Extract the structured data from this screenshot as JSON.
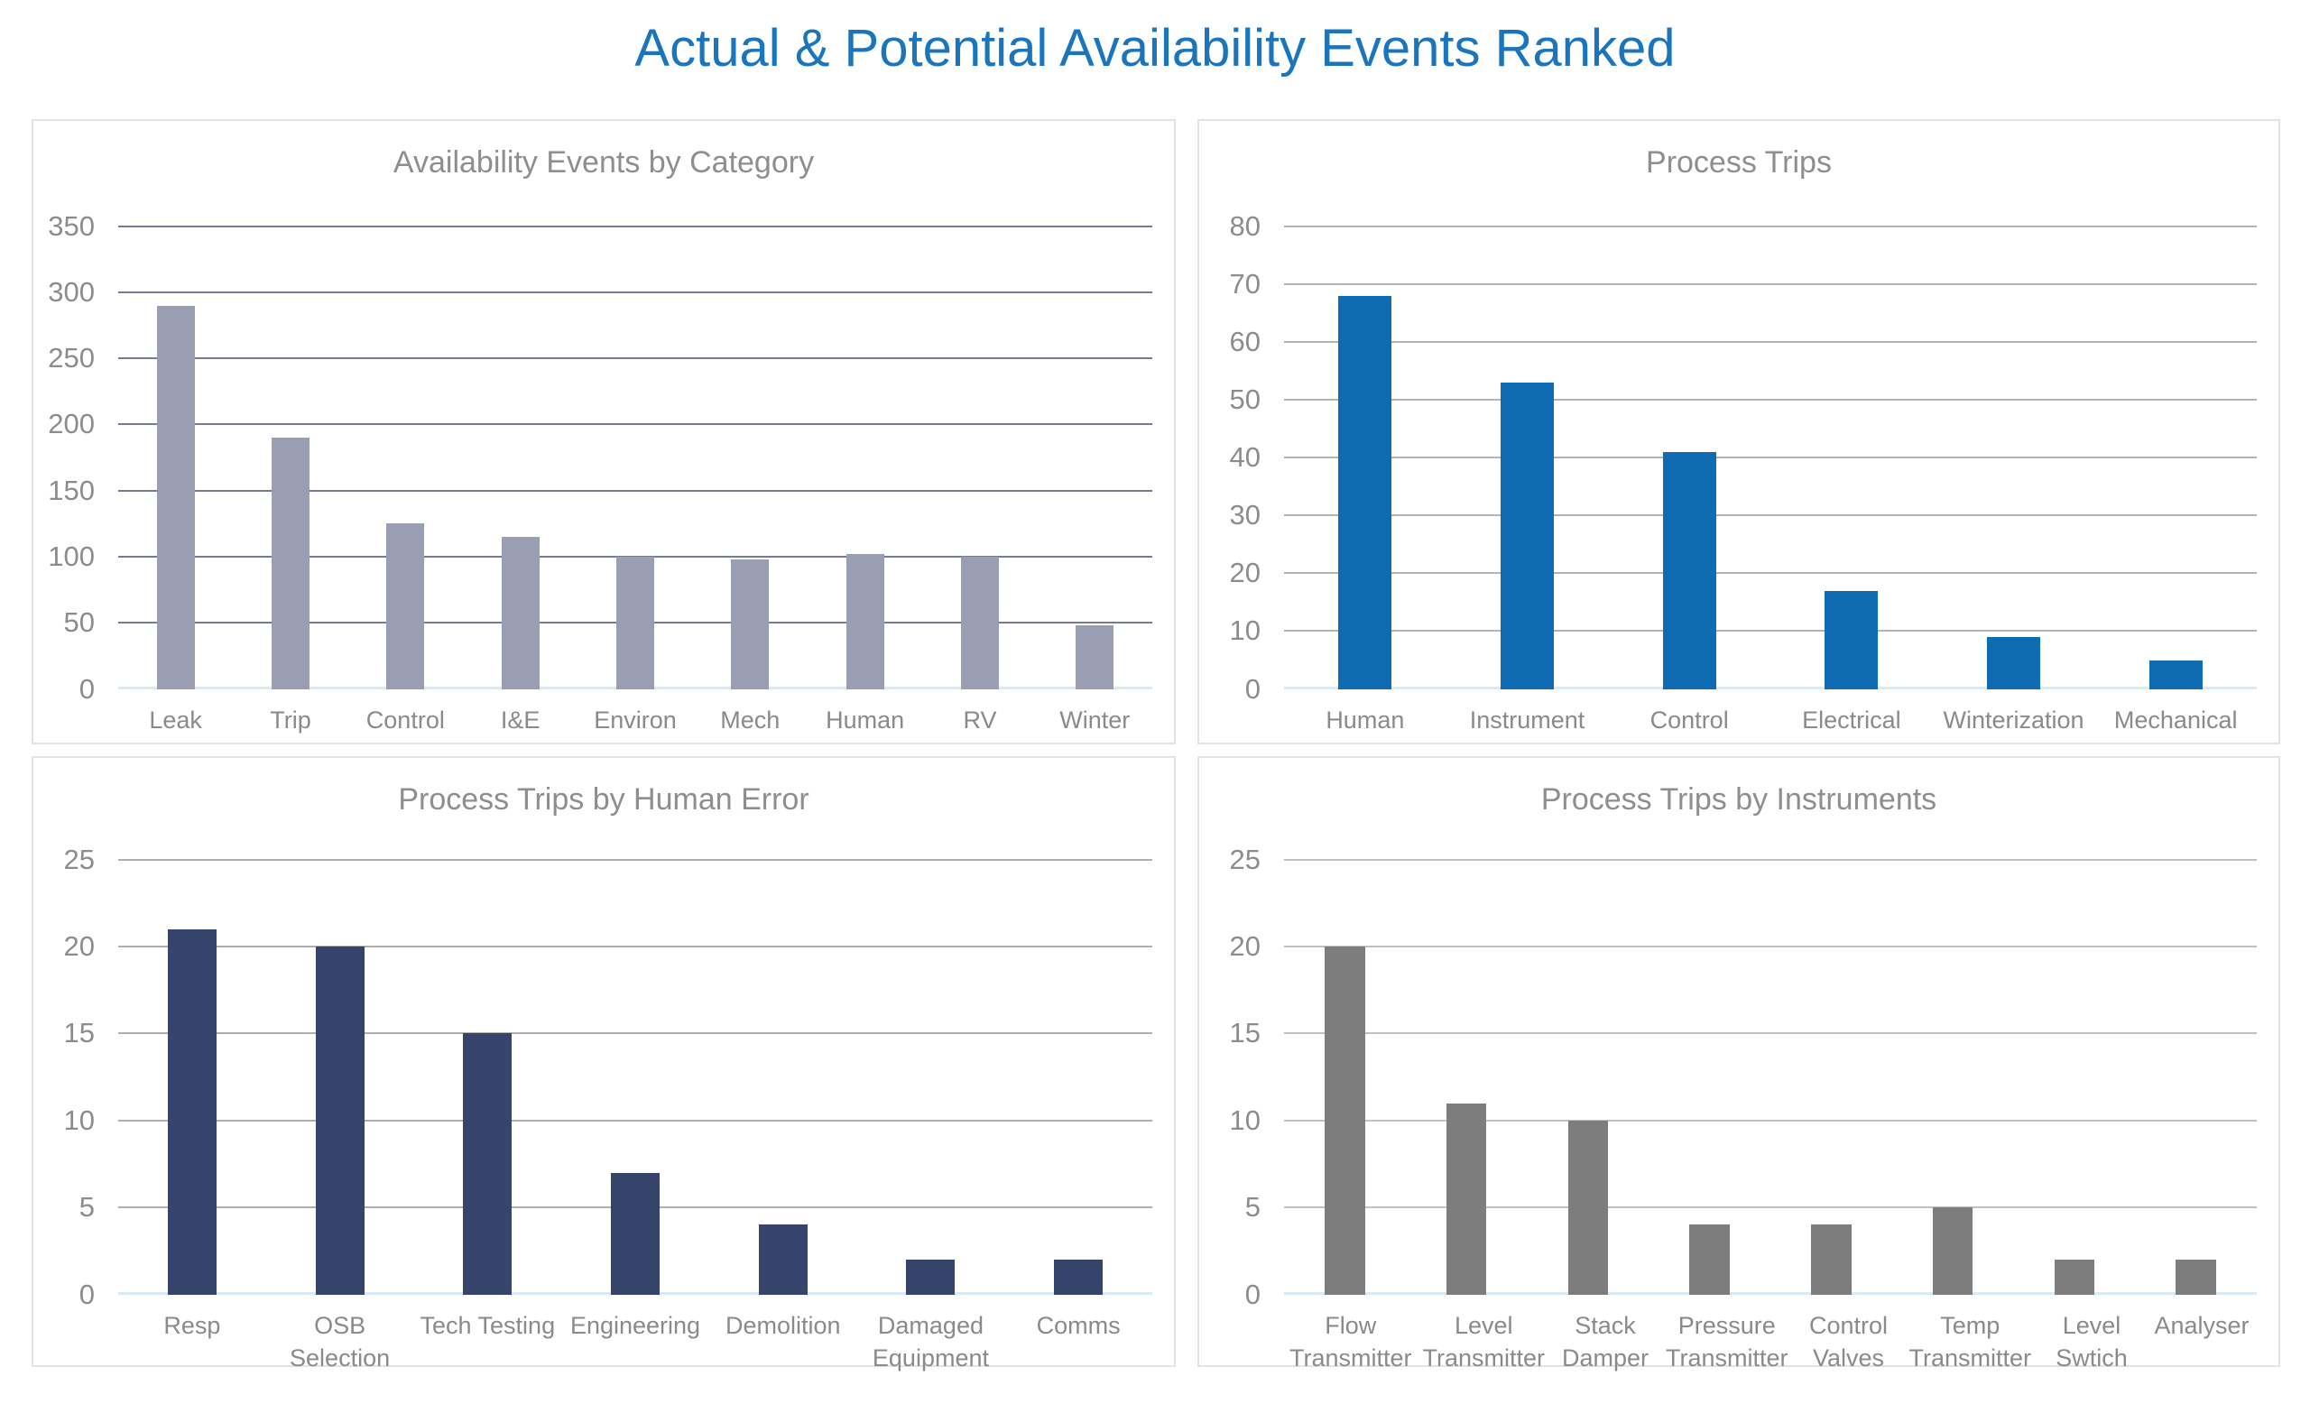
{
  "page": {
    "title": "Actual & Potential Availability Events Ranked",
    "title_color": "#1b75bc"
  },
  "colors": {
    "chart_title": "#8e8e8e",
    "tick_label": "#8c8c8c",
    "panel_border": "#e3e3e3",
    "baseline": "#d9eaf7"
  },
  "chart_data": [
    {
      "type": "bar",
      "title": "Availability Events by Category",
      "categories": [
        "Leak",
        "Trip",
        "Control",
        "I&E",
        "Environ",
        "Mech",
        "Human",
        "RV",
        "Winter"
      ],
      "values": [
        290,
        190,
        125,
        115,
        100,
        98,
        102,
        100,
        48
      ],
      "xlabel": "",
      "ylabel": "",
      "ylim": [
        0,
        350
      ],
      "ytick_step": 50,
      "grid": true,
      "legend": "none",
      "bar_color": "#9a9eb3",
      "grid_color": "#767a95"
    },
    {
      "type": "bar",
      "title": "Process Trips",
      "categories": [
        "Human",
        "Instrument",
        "Control",
        "Electrical",
        "Winterization",
        "Mechanical"
      ],
      "values": [
        68,
        53,
        41,
        17,
        9,
        5
      ],
      "xlabel": "",
      "ylabel": "",
      "ylim": [
        0,
        80
      ],
      "ytick_step": 10,
      "grid": true,
      "legend": "none",
      "bar_color": "#0f6cb2",
      "grid_color": "#b3b3b3"
    },
    {
      "type": "bar",
      "title": "Process Trips by Human Error",
      "categories": [
        "Resp",
        "OSB Selection",
        "Tech Testing",
        "Engineering",
        "Demolition",
        "Damaged Equipment",
        "Comms"
      ],
      "values": [
        21,
        20,
        15,
        7,
        4,
        2,
        2
      ],
      "xlabel": "",
      "ylabel": "",
      "ylim": [
        0,
        25
      ],
      "ytick_step": 5,
      "grid": true,
      "legend": "none",
      "bar_color": "#36436b",
      "grid_color": "#aeaeae"
    },
    {
      "type": "bar",
      "title": "Process Trips by Instruments",
      "categories": [
        "Flow Transmitter",
        "Level Transmitter",
        "Stack Damper",
        "Pressure Transmitter",
        "Control Valves",
        "Temp Transmitter",
        "Level Swtich",
        "Analyser"
      ],
      "values": [
        20,
        11,
        10,
        4,
        4,
        5,
        2,
        2
      ],
      "xlabel": "",
      "ylabel": "",
      "ylim": [
        0,
        25
      ],
      "ytick_step": 5,
      "grid": true,
      "legend": "none",
      "bar_color": "#7d7d7d",
      "grid_color": "#c0c0c0"
    }
  ]
}
